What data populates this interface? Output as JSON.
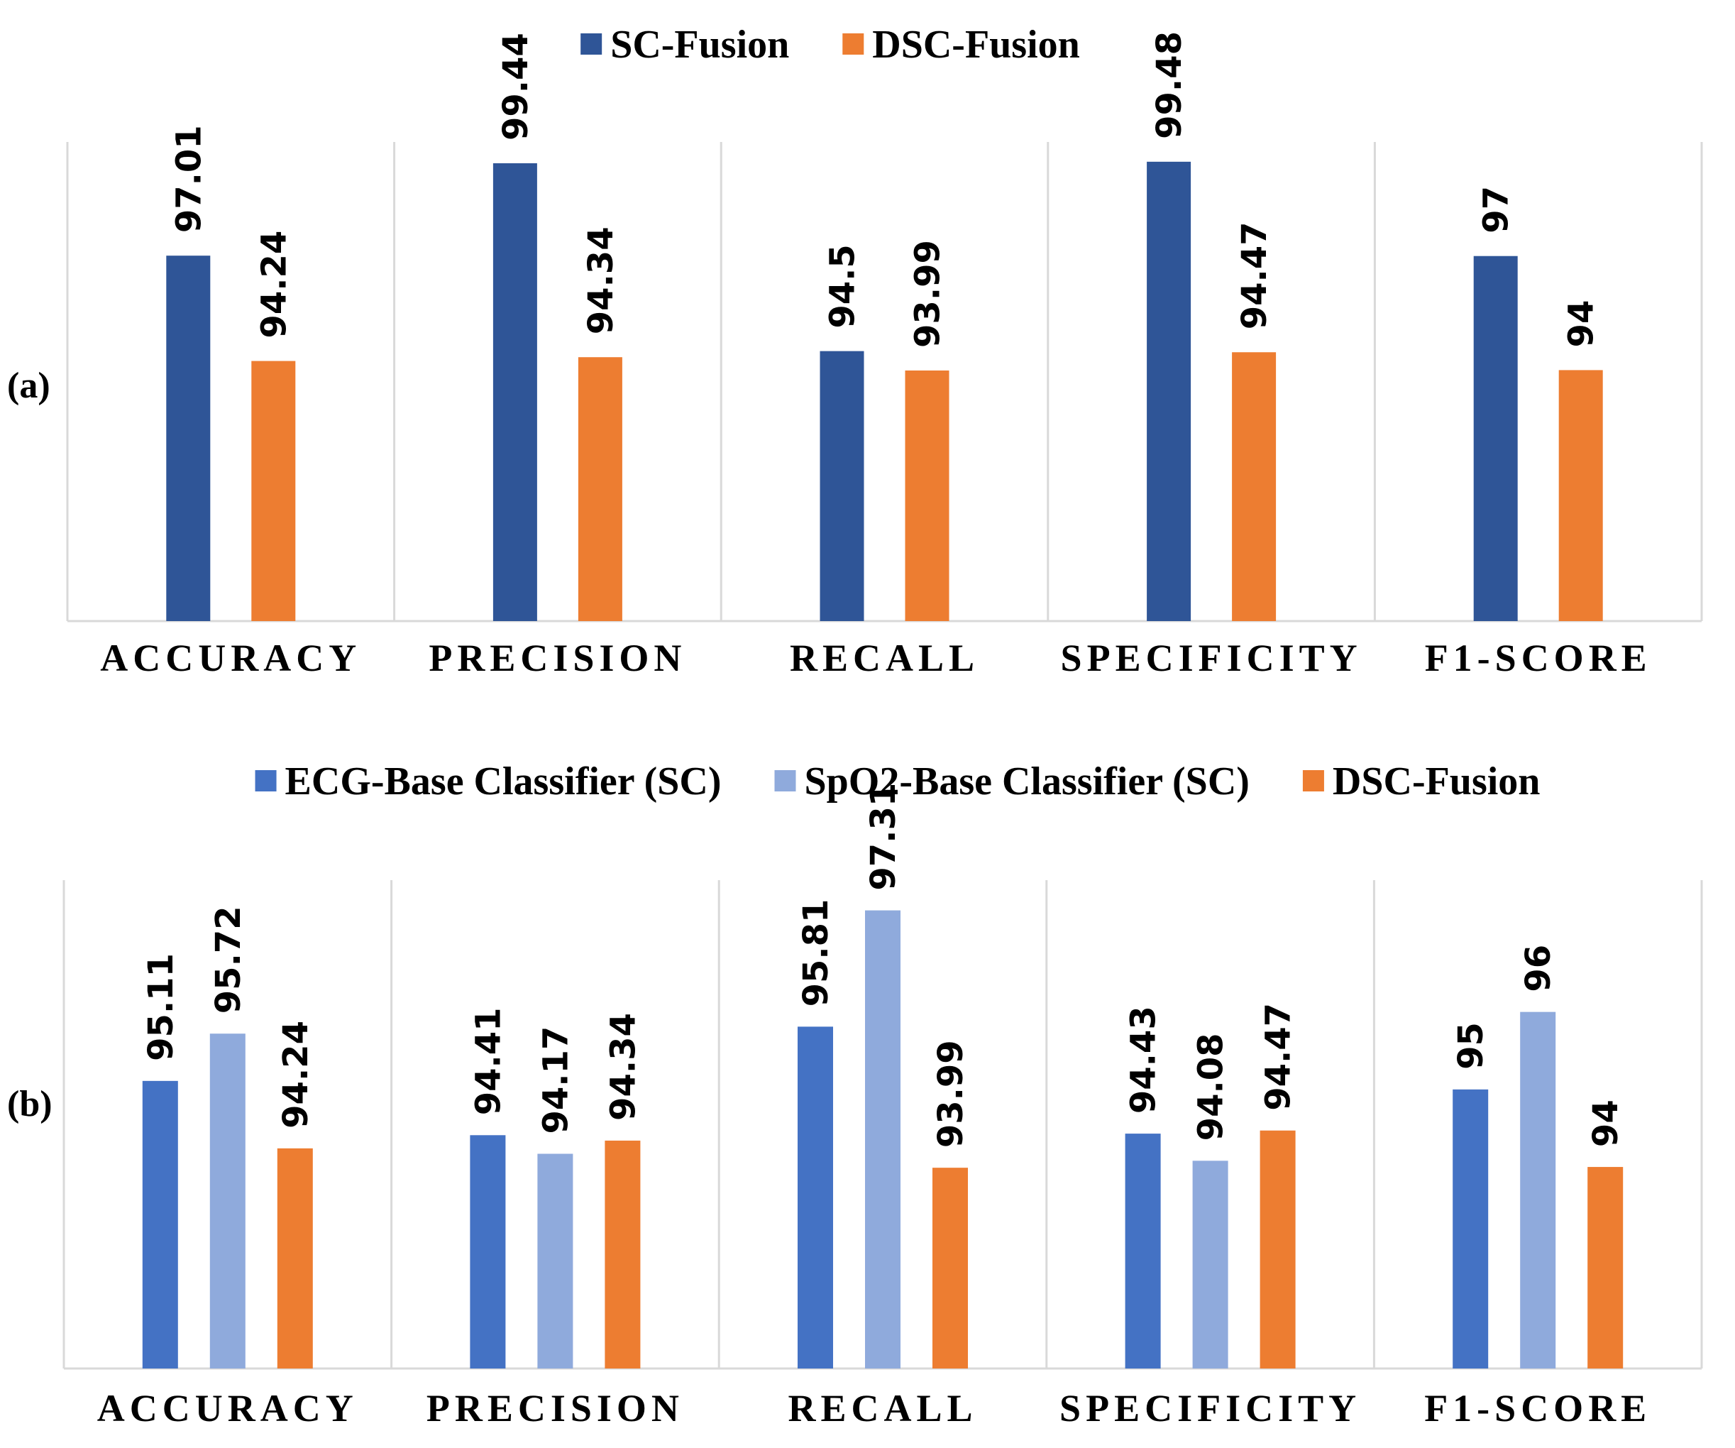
{
  "chart_data": [
    {
      "panel": "(a)",
      "type": "bar",
      "categories": [
        "ACCURACY",
        "PRECISION",
        "RECALL",
        "SPECIFICITY",
        "F1-SCORE"
      ],
      "series": [
        {
          "name": "SC-Fusion",
          "color": "#2F5597",
          "values": [
            97.01,
            99.44,
            94.5,
            99.48,
            97
          ],
          "labels": [
            "97.01",
            "99.44",
            "94.5",
            "99.48",
            "97"
          ]
        },
        {
          "name": "DSC-Fusion",
          "color": "#ED7D31",
          "values": [
            94.24,
            94.34,
            93.99,
            94.47,
            94
          ],
          "labels": [
            "94.24",
            "94.34",
            "93.99",
            "94.47",
            "94"
          ]
        }
      ],
      "ylim": [
        87.4,
        100.0
      ],
      "legend": "top-center",
      "grid": false
    },
    {
      "panel": "(b)",
      "type": "bar",
      "categories": [
        "ACCURACY",
        "PRECISION",
        "RECALL",
        "SPECIFICITY",
        "F1-SCORE"
      ],
      "series": [
        {
          "name": "ECG-Base Classifier (SC)",
          "color": "#4472C4",
          "values": [
            95.11,
            94.41,
            95.81,
            94.43,
            95
          ],
          "labels": [
            "95.11",
            "94.41",
            "95.81",
            "94.43",
            "95"
          ]
        },
        {
          "name": "SpO2-Base Classifier (SC)",
          "color": "#8FAADC",
          "values": [
            95.72,
            94.17,
            97.31,
            94.08,
            96
          ],
          "labels": [
            "95.72",
            "94.17",
            "97.31",
            "94.08",
            "96"
          ]
        },
        {
          "name": "DSC-Fusion",
          "color": "#ED7D31",
          "values": [
            94.24,
            94.34,
            93.99,
            94.47,
            94
          ],
          "labels": [
            "94.24",
            "94.34",
            "93.99",
            "94.47",
            "94"
          ]
        }
      ],
      "ylim": [
        91.4,
        97.7
      ],
      "legend": "top-center",
      "grid": false
    }
  ]
}
